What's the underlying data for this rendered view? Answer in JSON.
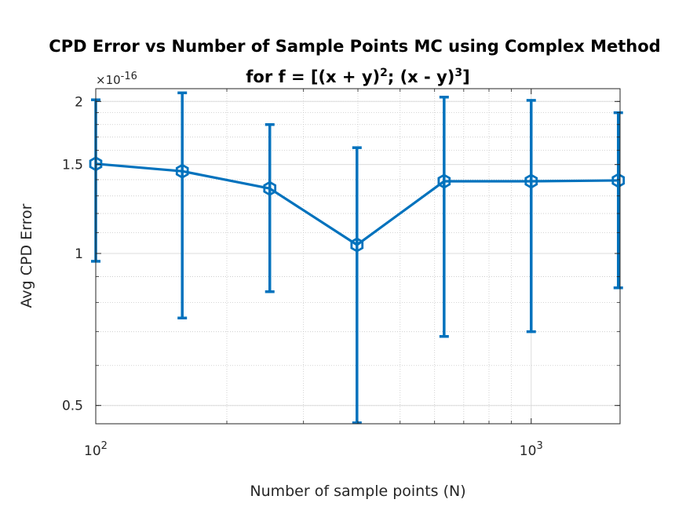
{
  "chart_data": {
    "type": "line",
    "title_line1": "CPD Error vs Number of Sample Points MC using Complex Method",
    "title_line2_prefix": "for f = [(x + y)",
    "title_line2_exp1": "2",
    "title_line2_middle": "; (x - y)",
    "title_line2_exp2": "3",
    "title_line2_suffix": "]",
    "xlabel": "Number of sample points (N)",
    "ylabel": "Avg CPD Error",
    "x_scale": "log",
    "y_scale": "log",
    "xlim": [
      100,
      1600
    ],
    "ylim": [
      0.46,
      2.12
    ],
    "y_multiplier_prefix": "×10",
    "y_multiplier_exponent": "-16",
    "x_ticks": [
      {
        "value": 100,
        "base": "10",
        "exp": "2"
      },
      {
        "value": 1000,
        "base": "10",
        "exp": "3"
      }
    ],
    "y_ticks": [
      {
        "value": 0.5,
        "label": "0.5"
      },
      {
        "value": 1,
        "label": "1"
      },
      {
        "value": 1.5,
        "label": "1.5"
      },
      {
        "value": 2,
        "label": "2"
      }
    ],
    "grid": true,
    "minor_grid": true,
    "legend": "none",
    "series": [
      {
        "color": "#0072BD",
        "marker": "hexagram",
        "x": [
          100,
          158,
          251,
          398,
          631,
          1000,
          1585
        ],
        "y": [
          1.505,
          1.455,
          1.345,
          1.04,
          1.39,
          1.39,
          1.395
        ],
        "err_low": [
          0.965,
          0.745,
          0.84,
          0.462,
          0.685,
          0.7,
          0.855
        ],
        "err_high": [
          2.015,
          2.08,
          1.8,
          1.62,
          2.04,
          2.01,
          1.9
        ]
      }
    ]
  }
}
